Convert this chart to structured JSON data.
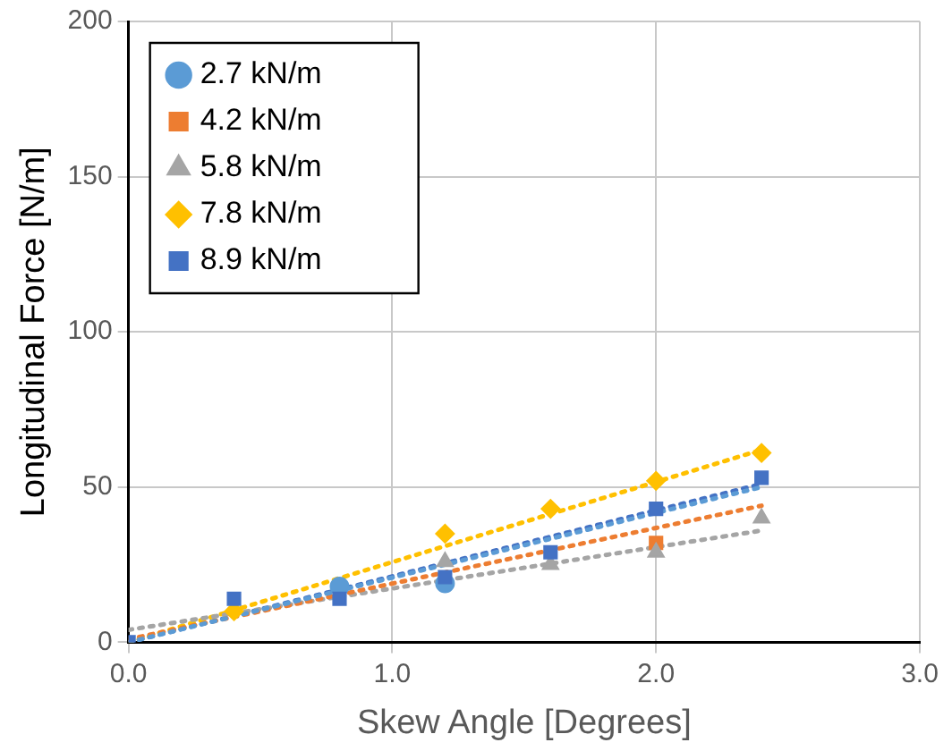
{
  "chart_data": {
    "type": "scatter",
    "xlabel": "Skew Angle [Degrees]",
    "ylabel": "Longitudinal Force [N/m]",
    "xlim": [
      0,
      3
    ],
    "xticks": [
      {
        "value": 0,
        "label": "0.0"
      },
      {
        "value": 1,
        "label": "1.0"
      },
      {
        "value": 2,
        "label": "2.0"
      },
      {
        "value": 3,
        "label": "3.0"
      }
    ],
    "ylim": [
      0,
      200
    ],
    "yticks": [
      0,
      50,
      100,
      150,
      200
    ],
    "grid": true,
    "legend": "top left",
    "series": [
      {
        "name": "2.7 kN/m",
        "color": "#5b9bd5",
        "marker": "circle",
        "x": [
          0.8,
          1.2
        ],
        "values": [
          18,
          19
        ]
      },
      {
        "name": "4.2 kN/m",
        "color": "#ed7d31",
        "marker": "square",
        "x": [
          2.0
        ],
        "values": [
          32
        ]
      },
      {
        "name": "5.8 kN/m",
        "color": "#a5a5a5",
        "marker": "triangle",
        "x": [
          1.2,
          1.6,
          2.0,
          2.4
        ],
        "values": [
          26,
          25,
          29,
          40
        ]
      },
      {
        "name": "7.8 kN/m",
        "color": "#ffc000",
        "marker": "diamond",
        "x": [
          0.4,
          1.2,
          1.6,
          2.0,
          2.4
        ],
        "values": [
          10,
          35,
          43,
          52,
          61
        ]
      },
      {
        "name": "8.9 kN/m",
        "color": "#4472c4",
        "marker": "square",
        "x": [
          0,
          0.4,
          0.8,
          1.2,
          1.6,
          2.0,
          2.4
        ],
        "values": [
          0,
          14,
          14,
          21,
          29,
          43,
          53
        ]
      },
      {
        "type": "line",
        "color": "#5b9bd5",
        "line_style": "dotted",
        "marker": "none",
        "x": [
          0,
          2.4
        ],
        "values": [
          0,
          50
        ]
      },
      {
        "type": "line",
        "color": "#ed7d31",
        "line_style": "dotted",
        "marker": "none",
        "x": [
          0,
          2.4
        ],
        "values": [
          1,
          44
        ]
      },
      {
        "type": "line",
        "color": "#a5a5a5",
        "line_style": "dotted",
        "marker": "none",
        "x": [
          0,
          2.4
        ],
        "values": [
          4,
          36
        ]
      },
      {
        "type": "line",
        "color": "#ffc000",
        "line_style": "dotted",
        "marker": "none",
        "x": [
          0,
          2.4
        ],
        "values": [
          0,
          62
        ]
      },
      {
        "type": "line",
        "color": "#4472c4",
        "line_style": "dotted",
        "marker": "none",
        "x": [
          0,
          2.4
        ],
        "values": [
          0,
          51
        ]
      }
    ]
  }
}
